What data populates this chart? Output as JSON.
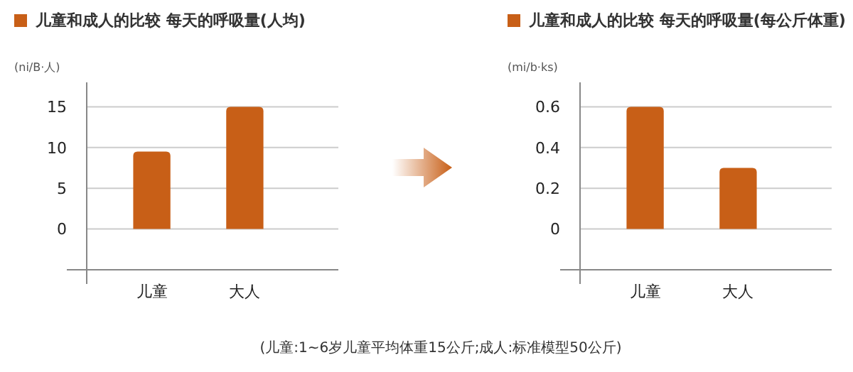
{
  "chart_data": [
    {
      "type": "bar",
      "categories": [
        "儿童",
        "大人"
      ],
      "series": [
        {
          "name": "儿童和成人的比较 每天的呼吸量(人均)",
          "color": "#c85f17",
          "values": [
            9.5,
            15
          ]
        }
      ],
      "ylabel": "(ni/B·人)",
      "ylim": [
        -5,
        18
      ],
      "yticks": [
        0,
        5,
        10,
        15
      ],
      "grid": "y",
      "legend": "top left"
    },
    {
      "type": "bar",
      "categories": [
        "儿童",
        "大人"
      ],
      "series": [
        {
          "name": "儿童和成人的比较 每天的呼吸量(每公斤体重)",
          "color": "#c85f17",
          "values": [
            0.6,
            0.3
          ]
        }
      ],
      "ylabel": "(mi/b·ks)",
      "ylim": [
        -0.2,
        0.72
      ],
      "yticks": [
        0,
        0.2,
        0.4,
        0.6
      ],
      "grid": "y",
      "legend": "top left",
      "annotations": [
        "(儿童:1~6岁儿童平均体重15公斤;成人:标准模型50公斤)"
      ]
    }
  ]
}
